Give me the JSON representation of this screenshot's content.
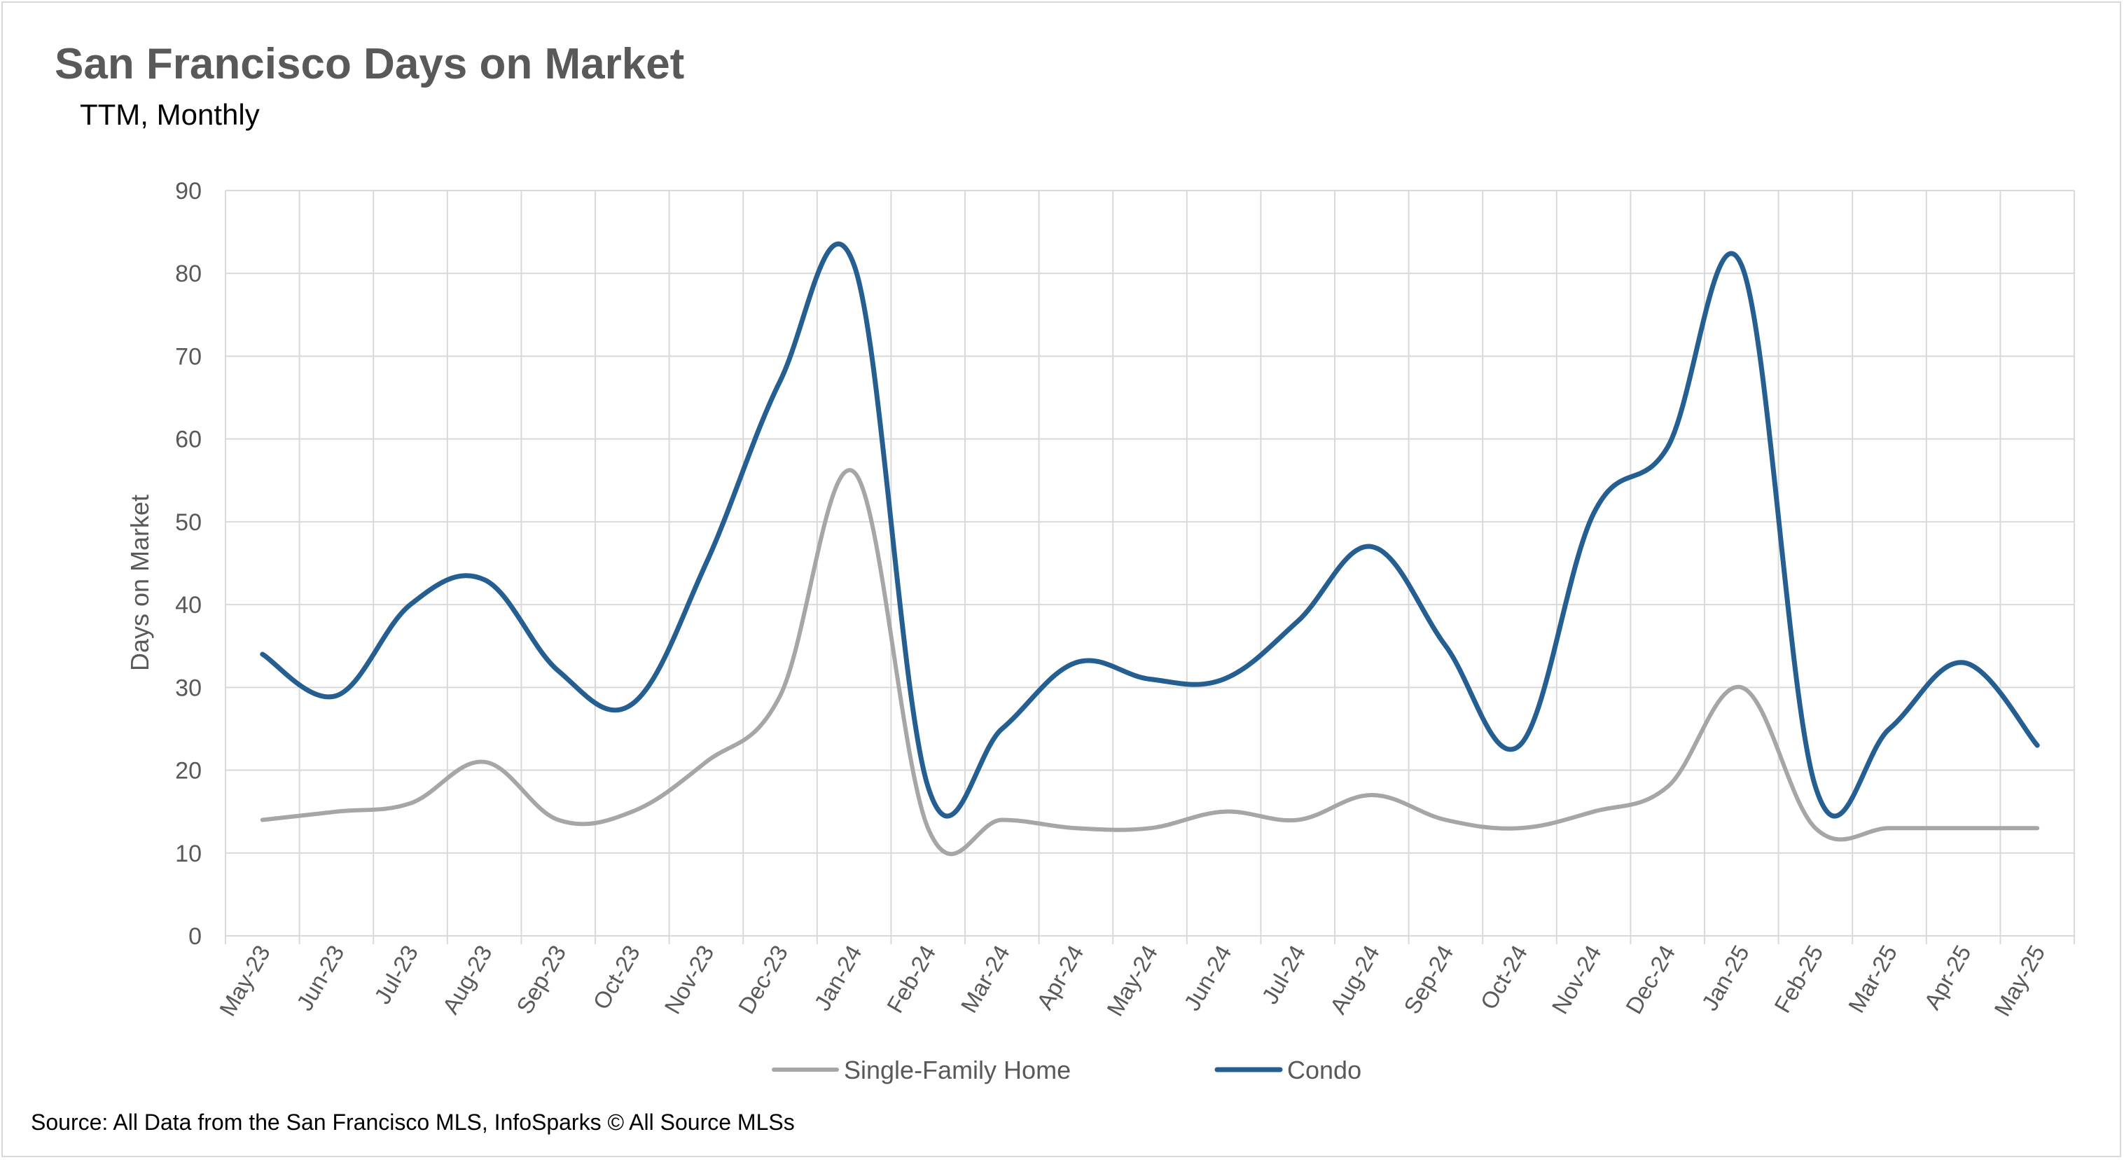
{
  "chart_data": {
    "type": "line",
    "title": "San Francisco Days on Market",
    "subtitle": "TTM, Monthly",
    "xlabel": "",
    "ylabel": "Days on Market",
    "ylim": [
      0,
      90
    ],
    "yticks": [
      0,
      10,
      20,
      30,
      40,
      50,
      60,
      70,
      80,
      90
    ],
    "grid": true,
    "legend_position": "bottom",
    "categories": [
      "May-23",
      "Jun-23",
      "Jul-23",
      "Aug-23",
      "Sep-23",
      "Oct-23",
      "Nov-23",
      "Dec-23",
      "Jan-24",
      "Feb-24",
      "Mar-24",
      "Apr-24",
      "May-24",
      "Jun-24",
      "Jul-24",
      "Aug-24",
      "Sep-24",
      "Oct-24",
      "Nov-24",
      "Dec-24",
      "Jan-25",
      "Feb-25",
      "Mar-25",
      "Apr-25",
      "May-25"
    ],
    "series": [
      {
        "name": "Single-Family Home",
        "color": "#a6a6a6",
        "values": [
          14,
          15,
          16,
          21,
          14,
          15,
          21,
          29,
          56,
          13,
          14,
          13,
          13,
          15,
          14,
          17,
          14,
          13,
          15,
          18,
          30,
          13,
          13,
          13,
          13
        ]
      },
      {
        "name": "Condo",
        "color": "#255e91",
        "values": [
          34,
          29,
          40,
          43,
          32,
          28,
          45,
          67,
          81,
          18,
          25,
          33,
          31,
          31,
          38,
          47,
          35,
          23,
          51,
          59,
          81,
          18,
          25,
          33,
          23
        ]
      }
    ]
  },
  "footer": {
    "source": "Source: All Data from the San Francisco MLS, InfoSparks © All Source MLSs"
  }
}
